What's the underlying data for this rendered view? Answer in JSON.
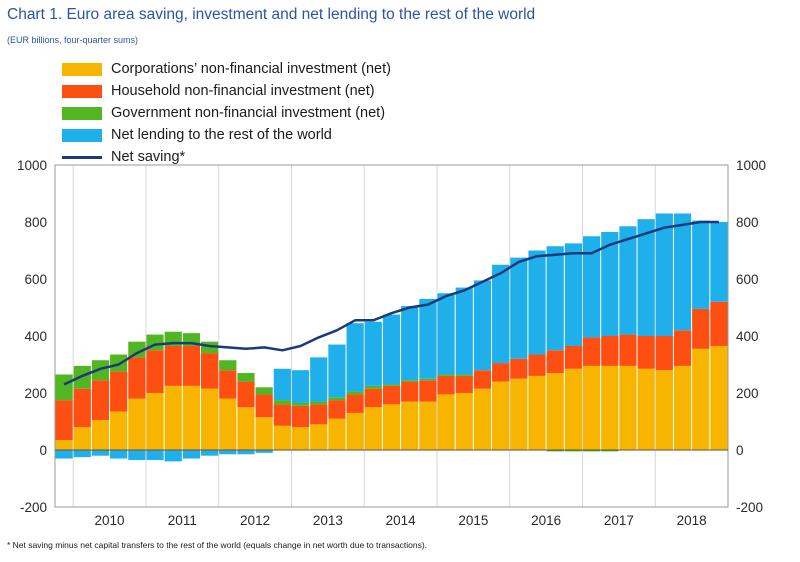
{
  "title": "Chart 1. Euro area saving, investment and net lending to the rest of the world",
  "subtitle": "(EUR billions, four-quarter sums)",
  "footnote": "* Net saving minus net capital transfers to the rest of the world (equals change in net worth due to transactions).",
  "colors": {
    "corp": "#f7b500",
    "household": "#fe4f13",
    "government": "#52b522",
    "net_lending": "#1fb0eb",
    "net_saving": "#1c3a79",
    "grid": "#d8d8d8"
  },
  "legend": [
    {
      "label": "Corporations’ non-financial investment (net)",
      "key": "corp",
      "kind": "box"
    },
    {
      "label": "Household non-financial investment (net)",
      "key": "household",
      "kind": "box"
    },
    {
      "label": "Government non-financial investment (net)",
      "key": "government",
      "kind": "box"
    },
    {
      "label": "Net lending to the rest of the world",
      "key": "net_lending",
      "kind": "box"
    },
    {
      "label": "Net saving*",
      "key": "net_saving",
      "kind": "line"
    }
  ],
  "chart_data": {
    "type": "bar",
    "subtype": "stacked bar with line overlay",
    "title": "Chart 1. Euro area saving, investment and net lending to the rest of the world",
    "subtitle": "(EUR billions, four-quarter sums)",
    "ylim": [
      -200,
      1000
    ],
    "yticks": [
      -200,
      0,
      200,
      400,
      600,
      800,
      1000
    ],
    "left_tick_labels": [
      "-200",
      "0",
      "200",
      "400",
      "600",
      "800",
      "1000"
    ],
    "right_tick_labels": [
      "-200",
      "0",
      "200",
      "400",
      "600",
      "800",
      "1000"
    ],
    "grid": "vertical lines at year boundaries",
    "legend_position": "top-left",
    "x_year_labels": [
      "2010",
      "2011",
      "2012",
      "2013",
      "2014",
      "2015",
      "2016",
      "2017",
      "2018"
    ],
    "categories": [
      "2009Q4",
      "2010Q1",
      "2010Q2",
      "2010Q3",
      "2010Q4",
      "2011Q1",
      "2011Q2",
      "2011Q3",
      "2011Q4",
      "2012Q1",
      "2012Q2",
      "2012Q3",
      "2012Q4",
      "2013Q1",
      "2013Q2",
      "2013Q3",
      "2013Q4",
      "2014Q1",
      "2014Q2",
      "2014Q3",
      "2014Q4",
      "2015Q1",
      "2015Q2",
      "2015Q3",
      "2015Q4",
      "2016Q1",
      "2016Q2",
      "2016Q3",
      "2016Q4",
      "2017Q1",
      "2017Q2",
      "2017Q3",
      "2017Q4",
      "2018Q1",
      "2018Q2",
      "2018Q3",
      "2018Q4"
    ],
    "series": [
      {
        "name": "Corporations’ non-financial investment (net)",
        "key": "corp",
        "values": [
          35,
          80,
          105,
          135,
          180,
          200,
          225,
          225,
          215,
          180,
          150,
          115,
          85,
          80,
          90,
          110,
          130,
          150,
          160,
          170,
          170,
          195,
          200,
          215,
          240,
          250,
          260,
          270,
          285,
          295,
          295,
          295,
          285,
          280,
          295,
          355,
          365
        ]
      },
      {
        "name": "Household non-financial investment (net)",
        "key": "household",
        "values": [
          140,
          135,
          140,
          140,
          145,
          150,
          140,
          140,
          125,
          100,
          90,
          80,
          75,
          75,
          70,
          65,
          65,
          65,
          65,
          70,
          75,
          65,
          60,
          65,
          65,
          70,
          75,
          80,
          80,
          100,
          105,
          110,
          115,
          120,
          125,
          140,
          155
        ]
      },
      {
        "name": "Government non-financial investment (net)",
        "key": "government",
        "values": [
          90,
          80,
          70,
          60,
          55,
          55,
          50,
          45,
          40,
          35,
          30,
          25,
          15,
          10,
          10,
          10,
          10,
          10,
          5,
          5,
          5,
          5,
          5,
          0,
          0,
          0,
          0,
          -5,
          -5,
          -5,
          -5,
          0,
          0,
          0,
          0,
          0,
          0
        ]
      },
      {
        "name": "Net lending to the rest of the world",
        "key": "net_lending",
        "values": [
          -30,
          -25,
          -20,
          -30,
          -35,
          -35,
          -40,
          -30,
          -20,
          -15,
          -15,
          -10,
          110,
          115,
          155,
          185,
          240,
          225,
          245,
          260,
          280,
          285,
          305,
          315,
          345,
          355,
          365,
          365,
          360,
          355,
          365,
          380,
          410,
          430,
          410,
          310,
          280
        ]
      },
      {
        "name": "Net saving*",
        "key": "net_saving",
        "kind": "line",
        "values": [
          230,
          260,
          285,
          300,
          340,
          370,
          375,
          375,
          365,
          360,
          355,
          360,
          350,
          365,
          395,
          420,
          455,
          455,
          480,
          500,
          510,
          540,
          560,
          590,
          620,
          660,
          680,
          685,
          690,
          690,
          720,
          740,
          760,
          780,
          790,
          800,
          800
        ]
      }
    ]
  }
}
